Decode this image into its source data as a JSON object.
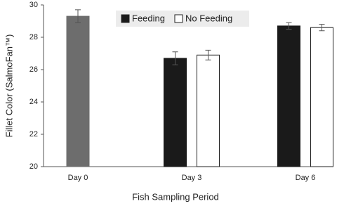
{
  "chart_data": {
    "type": "bar",
    "categories": [
      "Day 0",
      "Day 3",
      "Day 6"
    ],
    "x_label": "Fish Sampling Period",
    "y_label": "Fillet Color (SalmoFan™)",
    "baseline": {
      "color": "#6d6d6d",
      "values": [
        29.3,
        null,
        null
      ],
      "errors": [
        0.4,
        null,
        null
      ]
    },
    "series": [
      {
        "name": "Feeding",
        "color": "#1a1a1a",
        "values": [
          null,
          26.7,
          28.7
        ],
        "errors": [
          null,
          0.4,
          0.2
        ]
      },
      {
        "name": "No Feeding",
        "color": "#ffffff",
        "values": [
          null,
          26.9,
          28.6
        ],
        "errors": [
          null,
          0.3,
          0.2
        ]
      }
    ],
    "ylim": [
      20,
      30
    ],
    "yticks": [
      20,
      22,
      24,
      26,
      28,
      30
    ],
    "grid": false,
    "legend": "top"
  }
}
